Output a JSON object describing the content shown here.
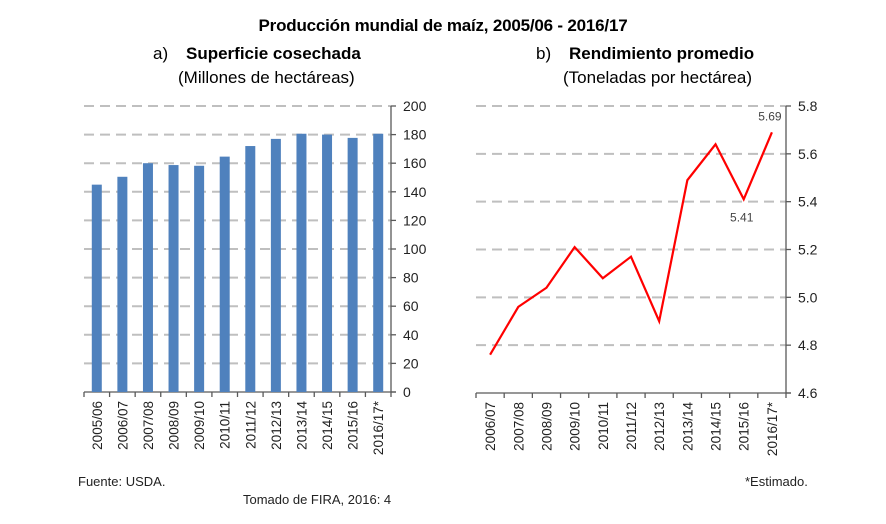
{
  "figure": {
    "title": "Producción mundial de maíz, 2005/06 - 2016/17",
    "source_note": "Fuente: USDA.",
    "credit": "Tomado de FIRA, 2016: 4",
    "estimate_note": "*Estimado."
  },
  "colors": {
    "bar": "#4F81BD",
    "line": "#FF0000",
    "grid": "#BFBFBF",
    "axis": "#595959"
  },
  "chart_data": [
    {
      "type": "bar",
      "panel_letter": "a)",
      "title": "Superficie cosechada",
      "subtitle": "(Millones de hectáreas)",
      "xlabel": "",
      "ylabel": "Millones de hectáreas",
      "categories": [
        "2005/06",
        "2006/07",
        "2007/08",
        "2008/09",
        "2009/10",
        "2010/11",
        "2011/12",
        "2012/13",
        "2013/14",
        "2014/15",
        "2015/16",
        "2016/17*"
      ],
      "values": [
        145,
        150.5,
        160,
        158.7,
        158.2,
        164.6,
        172,
        177,
        180.6,
        180,
        177.7,
        180.6
      ],
      "ylim": [
        0,
        200
      ],
      "yticks": [
        0,
        20,
        40,
        60,
        80,
        100,
        120,
        140,
        160,
        180,
        200
      ],
      "ytick_labels": [
        "0",
        "20",
        "40",
        "60",
        "80",
        "100",
        "120",
        "140",
        "160",
        "180",
        "200"
      ],
      "y_axis_side": "right",
      "grid": true,
      "grid_style": "dashed",
      "legend": "none"
    },
    {
      "type": "line",
      "panel_letter": "b)",
      "title": "Rendimiento promedio",
      "subtitle": "(Toneladas por hectárea)",
      "xlabel": "",
      "ylabel": "Toneladas por hectárea",
      "categories": [
        "2006/07",
        "2007/08",
        "2008/09",
        "2009/10",
        "2010/11",
        "2011/12",
        "2012/13",
        "2013/14",
        "2014/15",
        "2015/16",
        "2016/17*"
      ],
      "values": [
        4.76,
        4.96,
        5.04,
        5.21,
        5.08,
        5.17,
        4.9,
        5.49,
        5.64,
        5.41,
        5.69
      ],
      "annotations": [
        {
          "category": "2015/16",
          "text": "5.41",
          "position": "below"
        },
        {
          "category": "2016/17*",
          "text": "5.69",
          "position": "above"
        }
      ],
      "ylim": [
        4.6,
        5.8
      ],
      "yticks": [
        4.6,
        4.8,
        5.0,
        5.2,
        5.4,
        5.6,
        5.8
      ],
      "ytick_labels": [
        "4.6",
        "4.8",
        "5.0",
        "5.2",
        "5.4",
        "5.6",
        "5.8"
      ],
      "y_axis_side": "right",
      "grid": true,
      "grid_style": "dashed",
      "legend": "none"
    }
  ]
}
